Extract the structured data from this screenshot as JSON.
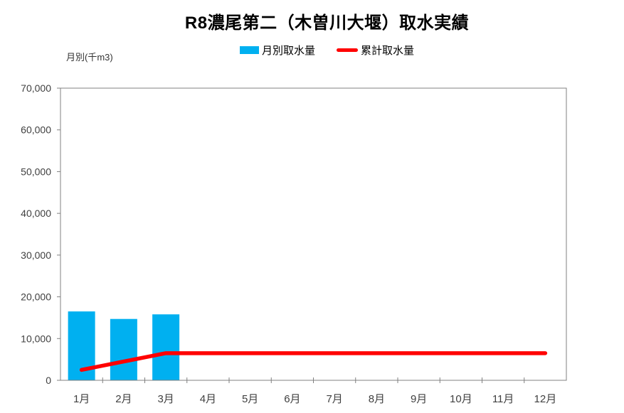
{
  "title": "R8濃尾第二（木曽川大堰）取水実績",
  "y_axis_unit": "月別(千m3)",
  "legend": {
    "items": [
      {
        "label": "月別取水量",
        "swatch": "bar-swatch",
        "color": "#00B0F0"
      },
      {
        "label": "累計取水量",
        "swatch": "line-swatch",
        "color": "#FF0000"
      }
    ]
  },
  "colors": {
    "background": "#FFFFFF",
    "bar": "#00B0F0",
    "line": "#FF0000",
    "axis": "#808080",
    "tick_label": "#404040",
    "title": "#000000"
  },
  "chart_data": {
    "type": "bar",
    "subtype": "bar+line combo",
    "title": "R8濃尾第二（木曽川大堰）取水実績",
    "xlabel": "",
    "ylabel": "月別(千m3)",
    "categories": [
      "1月",
      "2月",
      "3月",
      "4月",
      "5月",
      "6月",
      "7月",
      "8月",
      "9月",
      "10月",
      "11月",
      "12月"
    ],
    "series": [
      {
        "name": "月別取水量",
        "type": "bar",
        "color": "#00B0F0",
        "values": [
          16500,
          14700,
          15800,
          null,
          null,
          null,
          null,
          null,
          null,
          null,
          null,
          null
        ]
      },
      {
        "name": "累計取水量",
        "type": "line",
        "color": "#FF0000",
        "values": [
          2500,
          4500,
          6500,
          6500,
          6500,
          6500,
          6500,
          6500,
          6500,
          6500,
          6500,
          6500
        ]
      }
    ],
    "ylim": [
      0,
      70000
    ],
    "ytick_step": 10000,
    "ytick_labels": [
      "0",
      "10,000",
      "20,000",
      "30,000",
      "40,000",
      "50,000",
      "60,000",
      "70,000"
    ],
    "grid": false,
    "legend_position": "top-center"
  }
}
